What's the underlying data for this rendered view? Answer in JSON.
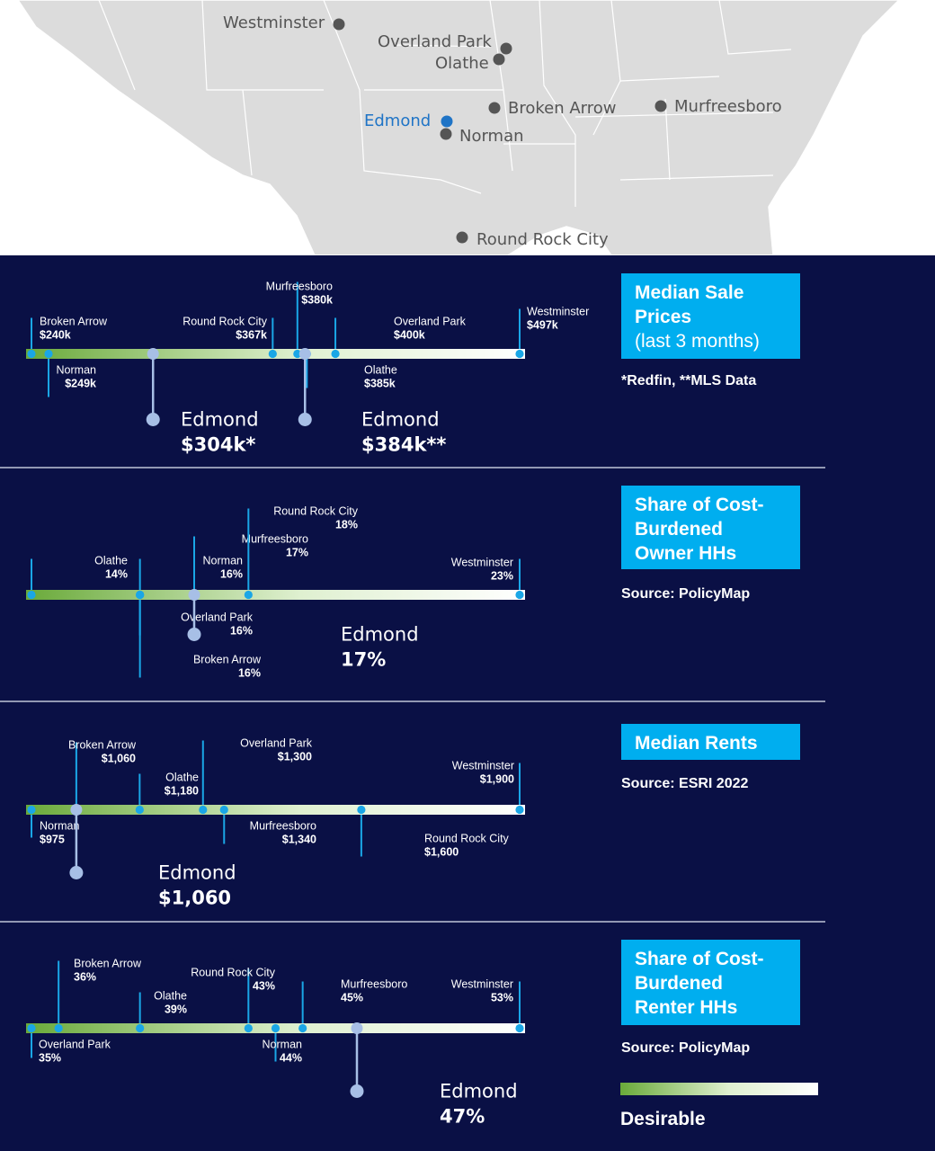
{
  "map": {
    "cities": [
      {
        "name": "Westminster",
        "highlight": false
      },
      {
        "name": "Overland Park",
        "highlight": false
      },
      {
        "name": "Olathe",
        "highlight": false
      },
      {
        "name": "Broken Arrow",
        "highlight": false
      },
      {
        "name": "Murfreesboro",
        "highlight": false
      },
      {
        "name": "Edmond",
        "highlight": true
      },
      {
        "name": "Norman",
        "highlight": false
      },
      {
        "name": "Round Rock City",
        "highlight": false
      }
    ]
  },
  "colors": {
    "background": "#0a1045",
    "box": "#00aeef",
    "point": "#1aa6e6",
    "edmond": "#a7bfe6",
    "gradient_start": "#6aaa3a",
    "gradient_end": "#ffffff"
  },
  "legend": {
    "label": "Desirable"
  },
  "chart_data": [
    {
      "type": "strip",
      "title_lines": [
        "Median Sale",
        "Prices",
        "(last 3 months)"
      ],
      "source": "*Redfin, **MLS Data",
      "domain": [
        240,
        497
      ],
      "points": [
        {
          "name": "Broken Arrow",
          "value": 240,
          "label": "$240k"
        },
        {
          "name": "Norman",
          "value": 249,
          "label": "$249k"
        },
        {
          "name": "Round Rock City",
          "value": 367,
          "label": "$367k"
        },
        {
          "name": "Murfreesboro",
          "value": 380,
          "label": "$380k"
        },
        {
          "name": "Olathe",
          "value": 385,
          "label": "$385k"
        },
        {
          "name": "Overland Park",
          "value": 400,
          "label": "$400k"
        },
        {
          "name": "Westminster",
          "value": 497,
          "label": "$497k"
        }
      ],
      "edmond": [
        {
          "name": "Edmond",
          "value": 304,
          "label": "$304k*"
        },
        {
          "name": "Edmond",
          "value": 384,
          "label": "$384k**"
        }
      ]
    },
    {
      "type": "strip",
      "title_lines": [
        "Share of Cost-",
        "Burdened",
        "Owner HHs"
      ],
      "source": "Source: PolicyMap",
      "domain": [
        14,
        23
      ],
      "points": [
        {
          "name": "Olathe",
          "value": 14,
          "label": "14%"
        },
        {
          "name": "Norman",
          "value": 16,
          "label": "16%"
        },
        {
          "name": "Overland Park",
          "value": 16,
          "label": "16%"
        },
        {
          "name": "Broken Arrow",
          "value": 16,
          "label": "16%"
        },
        {
          "name": "Murfreesboro",
          "value": 17,
          "label": "17%"
        },
        {
          "name": "Round Rock City",
          "value": 18,
          "label": "18%"
        },
        {
          "name": "Westminster",
          "value": 23,
          "label": "23%"
        }
      ],
      "edmond": [
        {
          "name": "Edmond",
          "value": 17,
          "label": "17%"
        }
      ]
    },
    {
      "type": "strip",
      "title_lines": [
        "Median Rents"
      ],
      "source": "Source: ESRI 2022",
      "domain": [
        975,
        1900
      ],
      "points": [
        {
          "name": "Norman",
          "value": 975,
          "label": "$975"
        },
        {
          "name": "Broken Arrow",
          "value": 1060,
          "label": "$1,060"
        },
        {
          "name": "Olathe",
          "value": 1180,
          "label": "$1,180"
        },
        {
          "name": "Overland Park",
          "value": 1300,
          "label": "$1,300"
        },
        {
          "name": "Murfreesboro",
          "value": 1340,
          "label": "$1,340"
        },
        {
          "name": "Round Rock City",
          "value": 1600,
          "label": "$1,600"
        },
        {
          "name": "Westminster",
          "value": 1900,
          "label": "$1,900"
        }
      ],
      "edmond": [
        {
          "name": "Edmond",
          "value": 1060,
          "label": "$1,060"
        }
      ]
    },
    {
      "type": "strip",
      "title_lines": [
        "Share of Cost-",
        "Burdened",
        "Renter HHs"
      ],
      "source": "Source: PolicyMap",
      "domain": [
        35,
        53
      ],
      "points": [
        {
          "name": "Overland Park",
          "value": 35,
          "label": "35%"
        },
        {
          "name": "Broken Arrow",
          "value": 36,
          "label": "36%"
        },
        {
          "name": "Olathe",
          "value": 39,
          "label": "39%"
        },
        {
          "name": "Round Rock City",
          "value": 43,
          "label": "43%"
        },
        {
          "name": "Norman",
          "value": 44,
          "label": "44%"
        },
        {
          "name": "Murfreesboro",
          "value": 45,
          "label": "45%"
        },
        {
          "name": "Westminster",
          "value": 53,
          "label": "53%"
        }
      ],
      "edmond": [
        {
          "name": "Edmond",
          "value": 47,
          "label": "47%"
        }
      ]
    }
  ]
}
